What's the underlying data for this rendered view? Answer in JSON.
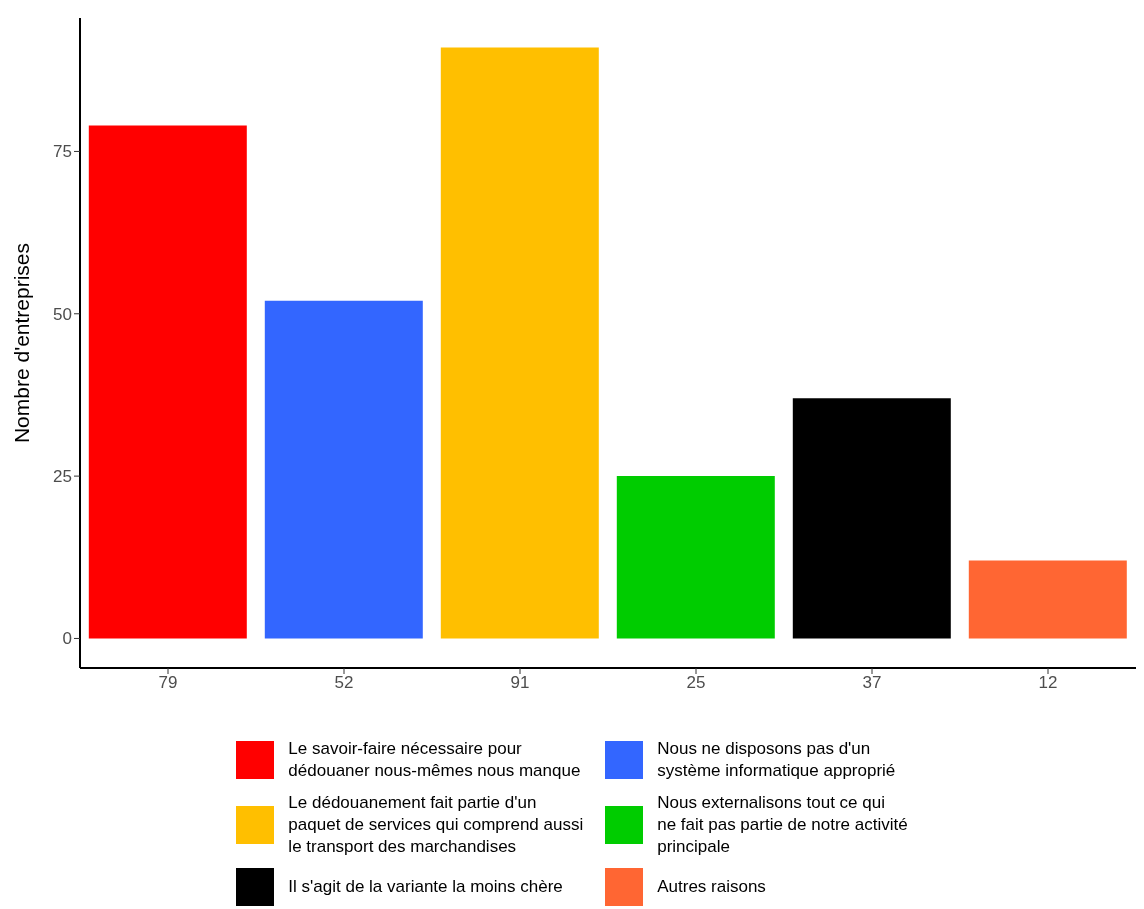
{
  "chart_data": {
    "type": "bar",
    "ylabel": "Nombre d'entreprises",
    "categories": [
      "79",
      "52",
      "91",
      "25",
      "37",
      "12"
    ],
    "stacked": true,
    "ylim": [
      -4.55,
      95.55
    ],
    "yticks": [
      0,
      25,
      50,
      75
    ],
    "grid": false,
    "legend": "bottom",
    "series": [
      {
        "name": "Le savoir-faire nécessaire pour\ndédouaner nous-mêmes nous manque",
        "color": "#ff0000",
        "values": [
          79,
          null,
          null,
          null,
          null,
          null
        ]
      },
      {
        "name": "Nous ne disposons pas d'un\nsystème informatique approprié",
        "color": "#3366ff",
        "values": [
          null,
          52,
          null,
          null,
          null,
          null
        ]
      },
      {
        "name": "Le dédouanement fait partie d'un\npaquet de services qui comprend aussi\nle transport des marchandises",
        "color": "#ffbf00",
        "values": [
          null,
          null,
          91,
          null,
          null,
          null
        ]
      },
      {
        "name": "Nous externalisons tout ce qui\nne fait pas partie de notre activité\nprincipale",
        "color": "#00cc00",
        "values": [
          null,
          null,
          null,
          25,
          null,
          null
        ]
      },
      {
        "name": "Il s'agit de la variante la moins chère",
        "color": "#000000",
        "values": [
          null,
          null,
          null,
          null,
          37,
          null
        ]
      },
      {
        "name": "Autres raisons",
        "color": "#ff6633",
        "values": [
          null,
          null,
          null,
          null,
          null,
          12
        ]
      }
    ]
  }
}
